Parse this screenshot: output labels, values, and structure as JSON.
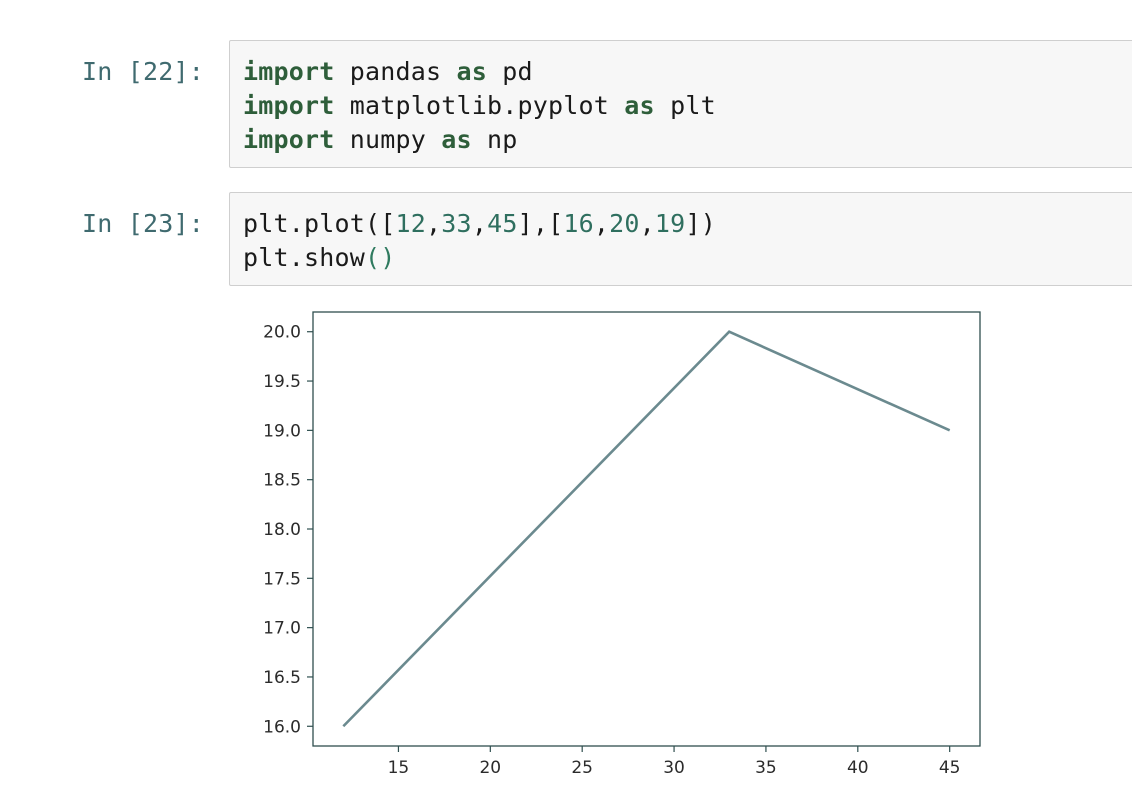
{
  "cells": [
    {
      "prompt": "In [22]:",
      "lines": [
        [
          {
            "t": "import",
            "c": "kw"
          },
          {
            "t": " pandas "
          },
          {
            "t": "as",
            "c": "kw"
          },
          {
            "t": " pd"
          }
        ],
        [
          {
            "t": "import",
            "c": "kw"
          },
          {
            "t": " matplotlib.pyplot "
          },
          {
            "t": "as",
            "c": "kw"
          },
          {
            "t": " plt"
          }
        ],
        [
          {
            "t": "import",
            "c": "kw"
          },
          {
            "t": " numpy "
          },
          {
            "t": "as",
            "c": "kw"
          },
          {
            "t": " np"
          }
        ]
      ]
    },
    {
      "prompt": "In [23]:",
      "lines": [
        [
          {
            "t": "plt.plot(["
          },
          {
            "t": "12",
            "c": "num"
          },
          {
            "t": ","
          },
          {
            "t": "33",
            "c": "num"
          },
          {
            "t": ","
          },
          {
            "t": "45",
            "c": "num"
          },
          {
            "t": "],["
          },
          {
            "t": "16",
            "c": "num"
          },
          {
            "t": ","
          },
          {
            "t": "20",
            "c": "num"
          },
          {
            "t": ","
          },
          {
            "t": "19",
            "c": "num"
          },
          {
            "t": "])"
          }
        ],
        [
          {
            "t": "plt.show"
          },
          {
            "t": "()",
            "c": "paren"
          }
        ]
      ]
    }
  ],
  "chart_data": {
    "type": "line",
    "x": [
      12,
      33,
      45
    ],
    "series": [
      {
        "values": [
          16,
          20,
          19
        ],
        "color": "#6b8a8f"
      }
    ],
    "xlim": [
      10.35,
      46.65
    ],
    "ylim": [
      15.8,
      20.2
    ],
    "xticks": [
      15,
      20,
      25,
      30,
      35,
      40,
      45
    ],
    "yticks": [
      16.0,
      16.5,
      17.0,
      17.5,
      18.0,
      18.5,
      19.0,
      19.5,
      20.0
    ],
    "ytick_labels": [
      "16.0",
      "16.5",
      "17.0",
      "17.5",
      "18.0",
      "18.5",
      "19.0",
      "19.5",
      "20.0"
    ],
    "title": "",
    "xlabel": "",
    "ylabel": "",
    "grid": false
  }
}
